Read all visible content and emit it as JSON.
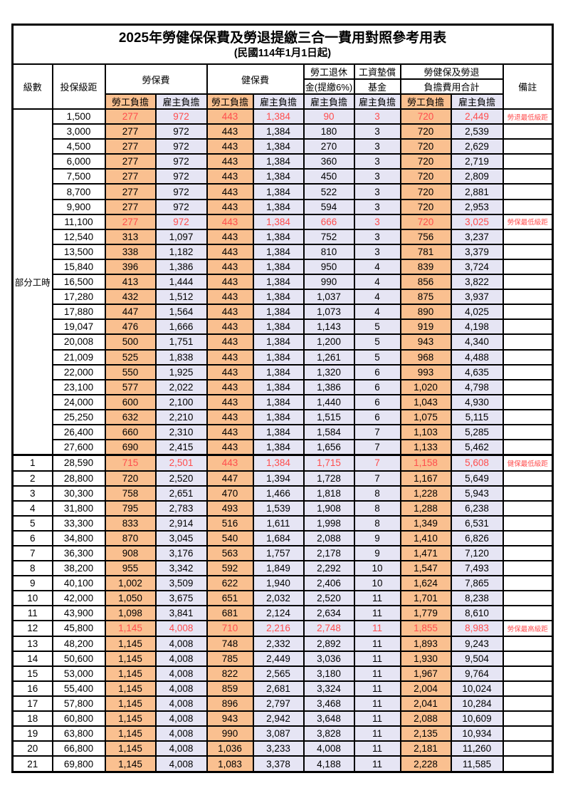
{
  "title": "2025年勞健保保費及勞退提繳三合一費用對照參考用表",
  "subtitle": "(民國114年1月1日起)",
  "colors": {
    "employee_col_bg": "#FAC090",
    "employer_col_bg": "#E6E5F4",
    "highlight_text": "#FF4D4D",
    "border": "#000000"
  },
  "header": {
    "level": "級數",
    "salary_bracket": "投保級距",
    "labor_insurance": "勞保費",
    "health_insurance": "健保費",
    "pension_line1": "勞工退休",
    "pension_line2": "金(提繳6%)",
    "wage_fund_line1": "工資墊償",
    "wage_fund_line2": "基金",
    "total_line1": "勞健保及勞退",
    "total_line2": "負擔費用合計",
    "remark": "備註",
    "employee": "勞工負擔",
    "employer": "雇主負擔"
  },
  "part_time_label": "部分工時",
  "rows": [
    {
      "level": "",
      "salary": "1,500",
      "li_emp": "277",
      "li_er": "972",
      "hi_emp": "443",
      "hi_er": "1,384",
      "pension": "90",
      "fund": "3",
      "sum_emp": "720",
      "sum_er": "2,449",
      "remark": "勞退最低級距",
      "highlight": true
    },
    {
      "level": "",
      "salary": "3,000",
      "li_emp": "277",
      "li_er": "972",
      "hi_emp": "443",
      "hi_er": "1,384",
      "pension": "180",
      "fund": "3",
      "sum_emp": "720",
      "sum_er": "2,539",
      "remark": "",
      "highlight": false
    },
    {
      "level": "",
      "salary": "4,500",
      "li_emp": "277",
      "li_er": "972",
      "hi_emp": "443",
      "hi_er": "1,384",
      "pension": "270",
      "fund": "3",
      "sum_emp": "720",
      "sum_er": "2,629",
      "remark": "",
      "highlight": false
    },
    {
      "level": "",
      "salary": "6,000",
      "li_emp": "277",
      "li_er": "972",
      "hi_emp": "443",
      "hi_er": "1,384",
      "pension": "360",
      "fund": "3",
      "sum_emp": "720",
      "sum_er": "2,719",
      "remark": "",
      "highlight": false
    },
    {
      "level": "",
      "salary": "7,500",
      "li_emp": "277",
      "li_er": "972",
      "hi_emp": "443",
      "hi_er": "1,384",
      "pension": "450",
      "fund": "3",
      "sum_emp": "720",
      "sum_er": "2,809",
      "remark": "",
      "highlight": false
    },
    {
      "level": "",
      "salary": "8,700",
      "li_emp": "277",
      "li_er": "972",
      "hi_emp": "443",
      "hi_er": "1,384",
      "pension": "522",
      "fund": "3",
      "sum_emp": "720",
      "sum_er": "2,881",
      "remark": "",
      "highlight": false
    },
    {
      "level": "",
      "salary": "9,900",
      "li_emp": "277",
      "li_er": "972",
      "hi_emp": "443",
      "hi_er": "1,384",
      "pension": "594",
      "fund": "3",
      "sum_emp": "720",
      "sum_er": "2,953",
      "remark": "",
      "highlight": false
    },
    {
      "level": "",
      "salary": "11,100",
      "li_emp": "277",
      "li_er": "972",
      "hi_emp": "443",
      "hi_er": "1,384",
      "pension": "666",
      "fund": "3",
      "sum_emp": "720",
      "sum_er": "3,025",
      "remark": "勞保最低級距",
      "highlight": true
    },
    {
      "level": "",
      "salary": "12,540",
      "li_emp": "313",
      "li_er": "1,097",
      "hi_emp": "443",
      "hi_er": "1,384",
      "pension": "752",
      "fund": "3",
      "sum_emp": "756",
      "sum_er": "3,237",
      "remark": "",
      "highlight": false
    },
    {
      "level": "",
      "salary": "13,500",
      "li_emp": "338",
      "li_er": "1,182",
      "hi_emp": "443",
      "hi_er": "1,384",
      "pension": "810",
      "fund": "3",
      "sum_emp": "781",
      "sum_er": "3,379",
      "remark": "",
      "highlight": false
    },
    {
      "level": "",
      "salary": "15,840",
      "li_emp": "396",
      "li_er": "1,386",
      "hi_emp": "443",
      "hi_er": "1,384",
      "pension": "950",
      "fund": "4",
      "sum_emp": "839",
      "sum_er": "3,724",
      "remark": "",
      "highlight": false
    },
    {
      "level": "",
      "salary": "16,500",
      "li_emp": "413",
      "li_er": "1,444",
      "hi_emp": "443",
      "hi_er": "1,384",
      "pension": "990",
      "fund": "4",
      "sum_emp": "856",
      "sum_er": "3,822",
      "remark": "",
      "highlight": false
    },
    {
      "level": "",
      "salary": "17,280",
      "li_emp": "432",
      "li_er": "1,512",
      "hi_emp": "443",
      "hi_er": "1,384",
      "pension": "1,037",
      "fund": "4",
      "sum_emp": "875",
      "sum_er": "3,937",
      "remark": "",
      "highlight": false
    },
    {
      "level": "",
      "salary": "17,880",
      "li_emp": "447",
      "li_er": "1,564",
      "hi_emp": "443",
      "hi_er": "1,384",
      "pension": "1,073",
      "fund": "4",
      "sum_emp": "890",
      "sum_er": "4,025",
      "remark": "",
      "highlight": false
    },
    {
      "level": "",
      "salary": "19,047",
      "li_emp": "476",
      "li_er": "1,666",
      "hi_emp": "443",
      "hi_er": "1,384",
      "pension": "1,143",
      "fund": "5",
      "sum_emp": "919",
      "sum_er": "4,198",
      "remark": "",
      "highlight": false
    },
    {
      "level": "",
      "salary": "20,008",
      "li_emp": "500",
      "li_er": "1,751",
      "hi_emp": "443",
      "hi_er": "1,384",
      "pension": "1,200",
      "fund": "5",
      "sum_emp": "943",
      "sum_er": "4,340",
      "remark": "",
      "highlight": false
    },
    {
      "level": "",
      "salary": "21,009",
      "li_emp": "525",
      "li_er": "1,838",
      "hi_emp": "443",
      "hi_er": "1,384",
      "pension": "1,261",
      "fund": "5",
      "sum_emp": "968",
      "sum_er": "4,488",
      "remark": "",
      "highlight": false
    },
    {
      "level": "",
      "salary": "22,000",
      "li_emp": "550",
      "li_er": "1,925",
      "hi_emp": "443",
      "hi_er": "1,384",
      "pension": "1,320",
      "fund": "6",
      "sum_emp": "993",
      "sum_er": "4,635",
      "remark": "",
      "highlight": false
    },
    {
      "level": "",
      "salary": "23,100",
      "li_emp": "577",
      "li_er": "2,022",
      "hi_emp": "443",
      "hi_er": "1,384",
      "pension": "1,386",
      "fund": "6",
      "sum_emp": "1,020",
      "sum_er": "4,798",
      "remark": "",
      "highlight": false
    },
    {
      "level": "",
      "salary": "24,000",
      "li_emp": "600",
      "li_er": "2,100",
      "hi_emp": "443",
      "hi_er": "1,384",
      "pension": "1,440",
      "fund": "6",
      "sum_emp": "1,043",
      "sum_er": "4,930",
      "remark": "",
      "highlight": false
    },
    {
      "level": "",
      "salary": "25,250",
      "li_emp": "632",
      "li_er": "2,210",
      "hi_emp": "443",
      "hi_er": "1,384",
      "pension": "1,515",
      "fund": "6",
      "sum_emp": "1,075",
      "sum_er": "5,115",
      "remark": "",
      "highlight": false
    },
    {
      "level": "",
      "salary": "26,400",
      "li_emp": "660",
      "li_er": "2,310",
      "hi_emp": "443",
      "hi_er": "1,384",
      "pension": "1,584",
      "fund": "7",
      "sum_emp": "1,103",
      "sum_er": "5,285",
      "remark": "",
      "highlight": false
    },
    {
      "level": "",
      "salary": "27,600",
      "li_emp": "690",
      "li_er": "2,415",
      "hi_emp": "443",
      "hi_er": "1,384",
      "pension": "1,656",
      "fund": "7",
      "sum_emp": "1,133",
      "sum_er": "5,462",
      "remark": "",
      "highlight": false
    },
    {
      "level": "1",
      "salary": "28,590",
      "li_emp": "715",
      "li_er": "2,501",
      "hi_emp": "443",
      "hi_er": "1,384",
      "pension": "1,715",
      "fund": "7",
      "sum_emp": "1,158",
      "sum_er": "5,608",
      "remark": "健保最低級距",
      "highlight": true
    },
    {
      "level": "2",
      "salary": "28,800",
      "li_emp": "720",
      "li_er": "2,520",
      "hi_emp": "447",
      "hi_er": "1,394",
      "pension": "1,728",
      "fund": "7",
      "sum_emp": "1,167",
      "sum_er": "5,649",
      "remark": "",
      "highlight": false
    },
    {
      "level": "3",
      "salary": "30,300",
      "li_emp": "758",
      "li_er": "2,651",
      "hi_emp": "470",
      "hi_er": "1,466",
      "pension": "1,818",
      "fund": "8",
      "sum_emp": "1,228",
      "sum_er": "5,943",
      "remark": "",
      "highlight": false
    },
    {
      "level": "4",
      "salary": "31,800",
      "li_emp": "795",
      "li_er": "2,783",
      "hi_emp": "493",
      "hi_er": "1,539",
      "pension": "1,908",
      "fund": "8",
      "sum_emp": "1,288",
      "sum_er": "6,238",
      "remark": "",
      "highlight": false
    },
    {
      "level": "5",
      "salary": "33,300",
      "li_emp": "833",
      "li_er": "2,914",
      "hi_emp": "516",
      "hi_er": "1,611",
      "pension": "1,998",
      "fund": "8",
      "sum_emp": "1,349",
      "sum_er": "6,531",
      "remark": "",
      "highlight": false
    },
    {
      "level": "6",
      "salary": "34,800",
      "li_emp": "870",
      "li_er": "3,045",
      "hi_emp": "540",
      "hi_er": "1,684",
      "pension": "2,088",
      "fund": "9",
      "sum_emp": "1,410",
      "sum_er": "6,826",
      "remark": "",
      "highlight": false
    },
    {
      "level": "7",
      "salary": "36,300",
      "li_emp": "908",
      "li_er": "3,176",
      "hi_emp": "563",
      "hi_er": "1,757",
      "pension": "2,178",
      "fund": "9",
      "sum_emp": "1,471",
      "sum_er": "7,120",
      "remark": "",
      "highlight": false
    },
    {
      "level": "8",
      "salary": "38,200",
      "li_emp": "955",
      "li_er": "3,342",
      "hi_emp": "592",
      "hi_er": "1,849",
      "pension": "2,292",
      "fund": "10",
      "sum_emp": "1,547",
      "sum_er": "7,493",
      "remark": "",
      "highlight": false
    },
    {
      "level": "9",
      "salary": "40,100",
      "li_emp": "1,002",
      "li_er": "3,509",
      "hi_emp": "622",
      "hi_er": "1,940",
      "pension": "2,406",
      "fund": "10",
      "sum_emp": "1,624",
      "sum_er": "7,865",
      "remark": "",
      "highlight": false
    },
    {
      "level": "10",
      "salary": "42,000",
      "li_emp": "1,050",
      "li_er": "3,675",
      "hi_emp": "651",
      "hi_er": "2,032",
      "pension": "2,520",
      "fund": "11",
      "sum_emp": "1,701",
      "sum_er": "8,238",
      "remark": "",
      "highlight": false
    },
    {
      "level": "11",
      "salary": "43,900",
      "li_emp": "1,098",
      "li_er": "3,841",
      "hi_emp": "681",
      "hi_er": "2,124",
      "pension": "2,634",
      "fund": "11",
      "sum_emp": "1,779",
      "sum_er": "8,610",
      "remark": "",
      "highlight": false
    },
    {
      "level": "12",
      "salary": "45,800",
      "li_emp": "1,145",
      "li_er": "4,008",
      "hi_emp": "710",
      "hi_er": "2,216",
      "pension": "2,748",
      "fund": "11",
      "sum_emp": "1,855",
      "sum_er": "8,983",
      "remark": "勞保最高級距",
      "highlight": true
    },
    {
      "level": "13",
      "salary": "48,200",
      "li_emp": "1,145",
      "li_er": "4,008",
      "hi_emp": "748",
      "hi_er": "2,332",
      "pension": "2,892",
      "fund": "11",
      "sum_emp": "1,893",
      "sum_er": "9,243",
      "remark": "",
      "highlight": false
    },
    {
      "level": "14",
      "salary": "50,600",
      "li_emp": "1,145",
      "li_er": "4,008",
      "hi_emp": "785",
      "hi_er": "2,449",
      "pension": "3,036",
      "fund": "11",
      "sum_emp": "1,930",
      "sum_er": "9,504",
      "remark": "",
      "highlight": false
    },
    {
      "level": "15",
      "salary": "53,000",
      "li_emp": "1,145",
      "li_er": "4,008",
      "hi_emp": "822",
      "hi_er": "2,565",
      "pension": "3,180",
      "fund": "11",
      "sum_emp": "1,967",
      "sum_er": "9,764",
      "remark": "",
      "highlight": false
    },
    {
      "level": "16",
      "salary": "55,400",
      "li_emp": "1,145",
      "li_er": "4,008",
      "hi_emp": "859",
      "hi_er": "2,681",
      "pension": "3,324",
      "fund": "11",
      "sum_emp": "2,004",
      "sum_er": "10,024",
      "remark": "",
      "highlight": false
    },
    {
      "level": "17",
      "salary": "57,800",
      "li_emp": "1,145",
      "li_er": "4,008",
      "hi_emp": "896",
      "hi_er": "2,797",
      "pension": "3,468",
      "fund": "11",
      "sum_emp": "2,041",
      "sum_er": "10,284",
      "remark": "",
      "highlight": false
    },
    {
      "level": "18",
      "salary": "60,800",
      "li_emp": "1,145",
      "li_er": "4,008",
      "hi_emp": "943",
      "hi_er": "2,942",
      "pension": "3,648",
      "fund": "11",
      "sum_emp": "2,088",
      "sum_er": "10,609",
      "remark": "",
      "highlight": false
    },
    {
      "level": "19",
      "salary": "63,800",
      "li_emp": "1,145",
      "li_er": "4,008",
      "hi_emp": "990",
      "hi_er": "3,087",
      "pension": "3,828",
      "fund": "11",
      "sum_emp": "2,135",
      "sum_er": "10,934",
      "remark": "",
      "highlight": false
    },
    {
      "level": "20",
      "salary": "66,800",
      "li_emp": "1,145",
      "li_er": "4,008",
      "hi_emp": "1,036",
      "hi_er": "3,233",
      "pension": "4,008",
      "fund": "11",
      "sum_emp": "2,181",
      "sum_er": "11,260",
      "remark": "",
      "highlight": false
    },
    {
      "level": "21",
      "salary": "69,800",
      "li_emp": "1,145",
      "li_er": "4,008",
      "hi_emp": "1,083",
      "hi_er": "3,378",
      "pension": "4,188",
      "fund": "11",
      "sum_emp": "2,228",
      "sum_er": "11,585",
      "remark": "",
      "highlight": false
    }
  ]
}
